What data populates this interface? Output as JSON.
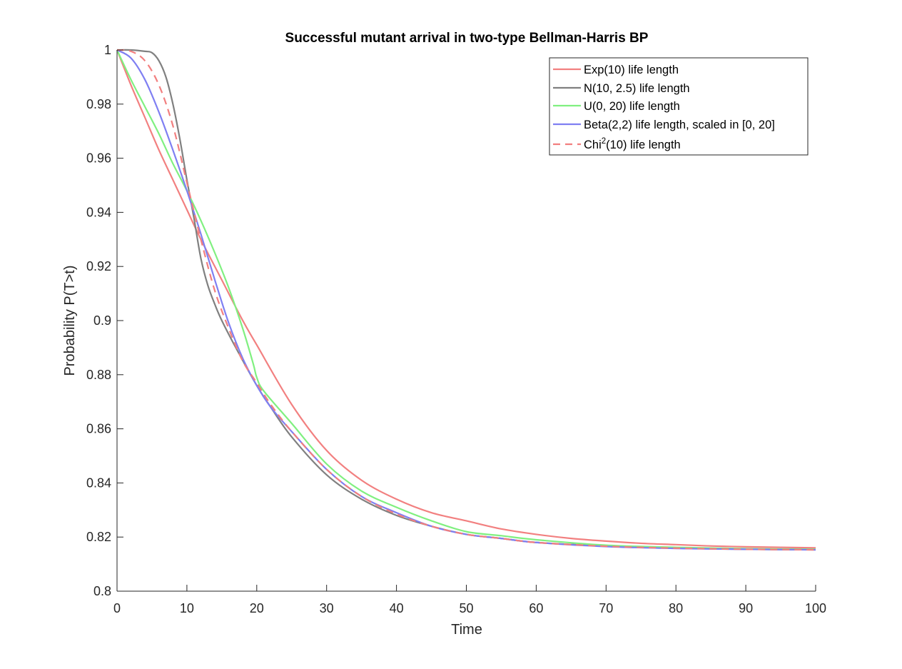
{
  "chart_data": {
    "type": "line",
    "title": "Successful mutant arrival in two-type Bellman-Harris BP",
    "xlabel": "Time",
    "ylabel": "Probability P(T>t)",
    "xlim": [
      0,
      100
    ],
    "ylim": [
      0.8,
      1.0
    ],
    "xticks": [
      "0",
      "10",
      "20",
      "30",
      "40",
      "50",
      "60",
      "70",
      "80",
      "90",
      "100"
    ],
    "yticks": [
      "0.8",
      "0.82",
      "0.84",
      "0.86",
      "0.88",
      "0.9",
      "0.92",
      "0.94",
      "0.96",
      "0.98",
      "1"
    ],
    "grid": false,
    "legend_position": "top-right",
    "series": [
      {
        "name": "Exp(10) life length",
        "color": "#f28080",
        "style": "solid",
        "x": [
          0,
          2,
          4,
          6,
          8,
          10,
          12,
          15,
          18,
          20,
          25,
          30,
          35,
          40,
          45,
          50,
          55,
          60,
          65,
          70,
          75,
          80,
          85,
          90,
          95,
          100
        ],
        "y": [
          1.0,
          0.987,
          0.975,
          0.963,
          0.952,
          0.941,
          0.93,
          0.915,
          0.9,
          0.891,
          0.869,
          0.852,
          0.841,
          0.834,
          0.829,
          0.826,
          0.823,
          0.821,
          0.8195,
          0.8185,
          0.8177,
          0.8172,
          0.8167,
          0.8164,
          0.8162,
          0.816
        ]
      },
      {
        "name": "N(10, 2.5) life length",
        "color": "#808080",
        "style": "solid",
        "x": [
          0,
          2,
          4,
          5,
          6,
          7,
          8,
          9,
          10,
          11,
          12,
          13,
          14,
          15,
          17,
          20,
          22,
          25,
          30,
          35,
          40,
          45,
          50,
          55,
          60,
          70,
          80,
          90,
          100
        ],
        "y": [
          1.0,
          1.0,
          0.9995,
          0.999,
          0.996,
          0.99,
          0.98,
          0.967,
          0.952,
          0.938,
          0.923,
          0.913,
          0.906,
          0.9,
          0.89,
          0.876,
          0.868,
          0.857,
          0.843,
          0.834,
          0.828,
          0.824,
          0.821,
          0.8195,
          0.818,
          0.8167,
          0.8159,
          0.8155,
          0.8153
        ]
      },
      {
        "name": "U(0, 20) life length",
        "color": "#80f080",
        "style": "solid",
        "x": [
          0,
          2,
          4,
          6,
          8,
          10,
          12,
          14,
          16,
          18,
          19.5,
          20,
          21,
          25,
          30,
          35,
          40,
          45,
          50,
          55,
          60,
          70,
          80,
          90,
          100
        ],
        "y": [
          1.0,
          0.989,
          0.979,
          0.969,
          0.958,
          0.948,
          0.937,
          0.925,
          0.912,
          0.897,
          0.884,
          0.879,
          0.874,
          0.862,
          0.847,
          0.837,
          0.831,
          0.826,
          0.822,
          0.8205,
          0.819,
          0.817,
          0.8162,
          0.8157,
          0.8155
        ]
      },
      {
        "name": "Beta(2,2) life length, scaled in [0, 20]",
        "color": "#7f7ff2",
        "style": "solid",
        "x": [
          0,
          2,
          4,
          6,
          8,
          10,
          12,
          14,
          16,
          18,
          20,
          22,
          25,
          30,
          35,
          40,
          45,
          50,
          55,
          60,
          70,
          80,
          90,
          100
        ],
        "y": [
          1.0,
          0.997,
          0.989,
          0.977,
          0.963,
          0.948,
          0.932,
          0.915,
          0.899,
          0.886,
          0.876,
          0.868,
          0.859,
          0.845,
          0.835,
          0.829,
          0.824,
          0.821,
          0.8195,
          0.818,
          0.8165,
          0.8158,
          0.8155,
          0.8153
        ]
      },
      {
        "name": "Chi2(10) life length",
        "color": "#f27f7f",
        "style": "dashed",
        "x": [
          0,
          2,
          4,
          6,
          8,
          10,
          12,
          14,
          16,
          18,
          20,
          22,
          25,
          30,
          35,
          40,
          45,
          50,
          55,
          60,
          70,
          80,
          90,
          100
        ],
        "y": [
          1.0,
          0.9995,
          0.996,
          0.987,
          0.972,
          0.951,
          0.93,
          0.911,
          0.897,
          0.885,
          0.877,
          0.869,
          0.859,
          0.845,
          0.835,
          0.8285,
          0.824,
          0.821,
          0.8195,
          0.818,
          0.8166,
          0.8159,
          0.8155,
          0.8153
        ]
      }
    ],
    "legend_labels": [
      {
        "main": "Exp(10) life length",
        "sup": "",
        "tail": ""
      },
      {
        "main": "N(10, 2.5) life length",
        "sup": "",
        "tail": ""
      },
      {
        "main": "U(0, 20) life length",
        "sup": "",
        "tail": ""
      },
      {
        "main": "Beta(2,2) life length, scaled in [0, 20]",
        "sup": "",
        "tail": ""
      },
      {
        "main": "Chi",
        "sup": "2",
        "tail": "(10) life length"
      }
    ]
  }
}
